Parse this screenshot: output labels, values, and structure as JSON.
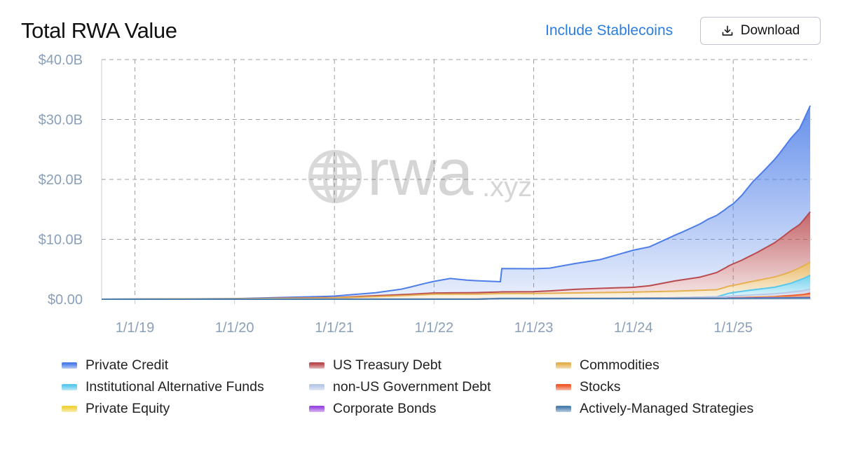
{
  "header": {
    "title": "Total RWA Value",
    "include_stablecoins_label": "Include Stablecoins",
    "download_label": "Download"
  },
  "watermark": {
    "brand": "rwa",
    "suffix": ".xyz"
  },
  "chart_data": {
    "type": "area",
    "stacked": true,
    "x_axis": {
      "type": "date",
      "range": [
        "2018-09-01",
        "2025-10-15"
      ],
      "ticks": [
        "2019-01-01",
        "2020-01-01",
        "2021-01-01",
        "2022-01-01",
        "2023-01-01",
        "2024-01-01",
        "2025-01-01"
      ],
      "tick_labels": [
        "1/1/19",
        "1/1/20",
        "1/1/21",
        "1/1/22",
        "1/1/23",
        "1/1/24",
        "1/1/25"
      ]
    },
    "y_axis": {
      "unit": "USD billions",
      "ylim": [
        0,
        40
      ],
      "ticks": [
        0,
        10,
        20,
        30,
        40
      ],
      "tick_labels": [
        "$0.00",
        "$10.0B",
        "$20.0B",
        "$30.0B",
        "$40.0B"
      ]
    },
    "grid": true,
    "grid_style": "dashed",
    "legend_position": "bottom",
    "series": [
      {
        "name": "Private Credit",
        "color": "#4c7de8",
        "points": [
          [
            "2018-09-01",
            0
          ],
          [
            "2020-01-01",
            0.03
          ],
          [
            "2020-12-01",
            0.2
          ],
          [
            "2021-06-01",
            0.5
          ],
          [
            "2021-09-01",
            0.9
          ],
          [
            "2021-12-01",
            1.7
          ],
          [
            "2022-03-01",
            2.4
          ],
          [
            "2022-05-01",
            2.1
          ],
          [
            "2022-09-01",
            1.7
          ],
          [
            "2022-09-06",
            3.9
          ],
          [
            "2023-03-01",
            3.8
          ],
          [
            "2023-09-01",
            4.8
          ],
          [
            "2024-01-01",
            6.2
          ],
          [
            "2024-03-01",
            6.5
          ],
          [
            "2024-07-01",
            8.0
          ],
          [
            "2024-10-01",
            9.3
          ],
          [
            "2025-01-01",
            10.0
          ],
          [
            "2025-02-01",
            10.8
          ],
          [
            "2025-03-15",
            12.2
          ],
          [
            "2025-05-01",
            13.2
          ],
          [
            "2025-06-15",
            14.2
          ],
          [
            "2025-08-01",
            15.4
          ],
          [
            "2025-09-01",
            16.0
          ],
          [
            "2025-10-10",
            17.7
          ]
        ]
      },
      {
        "name": "US Treasury Debt",
        "color": "#b94a4e",
        "points": [
          [
            "2018-09-01",
            0
          ],
          [
            "2020-01-01",
            0.01
          ],
          [
            "2021-01-01",
            0.05
          ],
          [
            "2021-06-01",
            0.15
          ],
          [
            "2022-01-01",
            0.2
          ],
          [
            "2022-06-01",
            0.25
          ],
          [
            "2023-01-01",
            0.3
          ],
          [
            "2023-03-01",
            0.4
          ],
          [
            "2023-06-01",
            0.6
          ],
          [
            "2023-09-01",
            0.7
          ],
          [
            "2024-01-01",
            0.8
          ],
          [
            "2024-03-01",
            1.0
          ],
          [
            "2024-06-01",
            1.7
          ],
          [
            "2024-09-01",
            2.2
          ],
          [
            "2024-12-01",
            3.2
          ],
          [
            "2025-01-01",
            3.6
          ],
          [
            "2025-02-01",
            3.9
          ],
          [
            "2025-04-01",
            4.7
          ],
          [
            "2025-06-01",
            5.7
          ],
          [
            "2025-08-01",
            6.9
          ],
          [
            "2025-09-01",
            7.2
          ],
          [
            "2025-10-10",
            8.4
          ]
        ]
      },
      {
        "name": "Commodities",
        "color": "#e5b050",
        "points": [
          [
            "2018-09-01",
            0
          ],
          [
            "2020-01-01",
            0.05
          ],
          [
            "2021-01-01",
            0.2
          ],
          [
            "2021-06-01",
            0.4
          ],
          [
            "2021-10-01",
            0.6
          ],
          [
            "2022-01-01",
            0.8
          ],
          [
            "2022-06-01",
            0.8
          ],
          [
            "2023-01-01",
            0.8
          ],
          [
            "2024-01-01",
            1.0
          ],
          [
            "2024-06-01",
            1.1
          ],
          [
            "2025-01-01",
            1.2
          ],
          [
            "2025-04-01",
            1.5
          ],
          [
            "2025-07-01",
            1.8
          ],
          [
            "2025-10-10",
            2.2
          ]
        ]
      },
      {
        "name": "Institutional Alternative Funds",
        "color": "#58c8ec",
        "points": [
          [
            "2018-09-01",
            0
          ],
          [
            "2024-11-01",
            0
          ],
          [
            "2024-12-15",
            0.5
          ],
          [
            "2025-03-01",
            0.8
          ],
          [
            "2025-06-01",
            1.1
          ],
          [
            "2025-08-01",
            1.5
          ],
          [
            "2025-10-10",
            2.3
          ]
        ]
      },
      {
        "name": "non-US Government Debt",
        "color": "#b7c7e6",
        "points": [
          [
            "2018-09-01",
            0
          ],
          [
            "2024-01-01",
            0.05
          ],
          [
            "2024-06-01",
            0.1
          ],
          [
            "2025-01-01",
            0.3
          ],
          [
            "2025-07-01",
            0.5
          ],
          [
            "2025-10-10",
            0.7
          ]
        ]
      },
      {
        "name": "Stocks",
        "color": "#ef5b2c",
        "points": [
          [
            "2018-09-01",
            0
          ],
          [
            "2025-01-01",
            0.02
          ],
          [
            "2025-06-01",
            0.1
          ],
          [
            "2025-08-01",
            0.25
          ],
          [
            "2025-09-15",
            0.4
          ],
          [
            "2025-10-10",
            0.6
          ]
        ]
      },
      {
        "name": "Private Equity",
        "color": "#f0d23a",
        "points": [
          [
            "2018-09-01",
            0
          ],
          [
            "2024-12-01",
            0
          ],
          [
            "2025-01-01",
            0.02
          ],
          [
            "2025-06-01",
            0.08
          ],
          [
            "2025-10-10",
            0.1
          ]
        ]
      },
      {
        "name": "Corporate Bonds",
        "color": "#9b4ae0",
        "points": [
          [
            "2018-09-01",
            0
          ],
          [
            "2024-12-01",
            0
          ],
          [
            "2025-01-01",
            0.05
          ],
          [
            "2025-06-01",
            0.08
          ],
          [
            "2025-10-10",
            0.1
          ]
        ]
      },
      {
        "name": "Actively-Managed Strategies",
        "color": "#4a7fb0",
        "points": [
          [
            "2018-09-01",
            0
          ],
          [
            "2022-06-01",
            0
          ],
          [
            "2022-09-01",
            0.1
          ],
          [
            "2024-01-01",
            0.12
          ],
          [
            "2025-01-01",
            0.15
          ],
          [
            "2025-10-10",
            0.2
          ]
        ]
      }
    ]
  }
}
